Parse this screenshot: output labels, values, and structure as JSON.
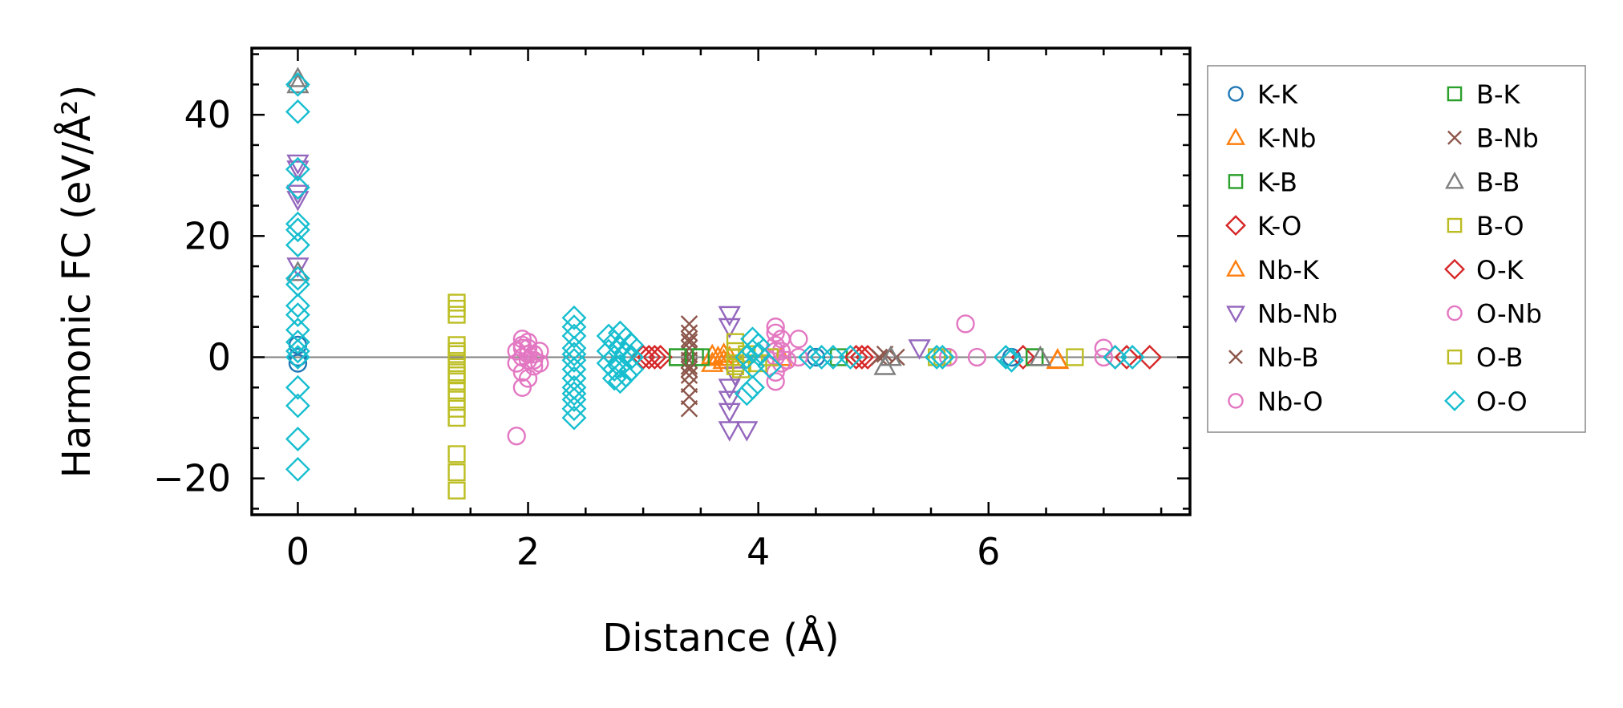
{
  "chart_data": {
    "type": "scatter",
    "title": "",
    "xlabel": "Distance (Å)",
    "ylabel": "Harmonic FC (eV/Å²)",
    "xlim": [
      -0.4,
      7.75
    ],
    "ylim": [
      -26,
      51
    ],
    "xticks": [
      0,
      2,
      4,
      6
    ],
    "yticks": [
      -20,
      0,
      20,
      40
    ],
    "grid": false,
    "zero_line": true,
    "legend_position": "outside-right",
    "legend_columns": 2,
    "series": [
      {
        "name": "K-K",
        "marker": "circle",
        "color": "#1f77b4",
        "points": [
          [
            0,
            0
          ],
          [
            0,
            2
          ],
          [
            0,
            -1
          ],
          [
            6.2,
            0
          ],
          [
            4.5,
            0
          ]
        ]
      },
      {
        "name": "K-Nb",
        "marker": "triangle-up",
        "color": "#ff7f0e",
        "points": [
          [
            3.6,
            -1
          ],
          [
            3.7,
            0.5
          ],
          [
            3.65,
            0
          ],
          [
            6.6,
            -0.5
          ],
          [
            4.2,
            0
          ]
        ]
      },
      {
        "name": "K-B",
        "marker": "square",
        "color": "#2ca02c",
        "points": [
          [
            3.3,
            0
          ],
          [
            3.45,
            0
          ],
          [
            6.4,
            0
          ],
          [
            4.7,
            0
          ]
        ]
      },
      {
        "name": "K-O",
        "marker": "diamond",
        "color": "#d62728",
        "points": [
          [
            3.0,
            0
          ],
          [
            3.15,
            0
          ],
          [
            4.85,
            0
          ],
          [
            4.95,
            0
          ],
          [
            6.3,
            0
          ],
          [
            7.2,
            0
          ],
          [
            7.4,
            0
          ]
        ]
      },
      {
        "name": "Nb-K",
        "marker": "triangle-up",
        "color": "#ff7f0e",
        "points": [
          [
            3.7,
            -0.5
          ],
          [
            3.75,
            0
          ],
          [
            3.6,
            0.3
          ],
          [
            6.6,
            -0.4
          ]
        ]
      },
      {
        "name": "Nb-Nb",
        "marker": "triangle-down",
        "color": "#9467bd",
        "points": [
          [
            0,
            32
          ],
          [
            0,
            31
          ],
          [
            0,
            27
          ],
          [
            0,
            26
          ],
          [
            0,
            15
          ],
          [
            3.75,
            7
          ],
          [
            3.75,
            5
          ],
          [
            3.75,
            -5
          ],
          [
            3.75,
            -7
          ],
          [
            3.75,
            -9
          ],
          [
            3.75,
            -12
          ],
          [
            3.9,
            -12
          ],
          [
            3.8,
            -3
          ],
          [
            5.4,
            1.5
          ]
        ]
      },
      {
        "name": "Nb-B",
        "marker": "x",
        "color": "#8c564b",
        "points": [
          [
            3.4,
            5.5
          ],
          [
            3.4,
            4
          ],
          [
            3.4,
            2.5
          ],
          [
            3.4,
            1.5
          ],
          [
            3.4,
            0.5
          ],
          [
            3.4,
            -0.5
          ],
          [
            3.4,
            -1.5
          ],
          [
            3.4,
            -3
          ],
          [
            3.4,
            -4.5
          ],
          [
            3.4,
            -6.5
          ],
          [
            3.4,
            -8.5
          ],
          [
            5.1,
            0.5
          ],
          [
            5.2,
            0
          ]
        ]
      },
      {
        "name": "Nb-O",
        "marker": "circle",
        "color": "#e377c2",
        "points": [
          [
            1.9,
            -13
          ],
          [
            1.95,
            3
          ],
          [
            2.0,
            2.5
          ],
          [
            1.95,
            2
          ],
          [
            2.0,
            1.5
          ],
          [
            1.9,
            1
          ],
          [
            2.05,
            0.5
          ],
          [
            1.95,
            0
          ],
          [
            2.0,
            -0.5
          ],
          [
            1.9,
            -1
          ],
          [
            2.05,
            -1.5
          ],
          [
            1.95,
            -2.5
          ],
          [
            2.0,
            -3.5
          ],
          [
            1.95,
            -5
          ],
          [
            2.1,
            1
          ],
          [
            2.1,
            -1
          ],
          [
            4.15,
            5
          ],
          [
            4.15,
            4
          ],
          [
            4.2,
            3
          ],
          [
            4.15,
            2
          ],
          [
            4.2,
            1
          ],
          [
            4.15,
            0
          ],
          [
            4.2,
            -1
          ],
          [
            4.15,
            -2.5
          ],
          [
            4.15,
            -4
          ],
          [
            4.35,
            3
          ],
          [
            4.35,
            0
          ],
          [
            5.8,
            5.5
          ],
          [
            7.0,
            1.5
          ],
          [
            7.0,
            0
          ]
        ]
      },
      {
        "name": "B-K",
        "marker": "square",
        "color": "#2ca02c",
        "points": [
          [
            3.3,
            0
          ],
          [
            3.5,
            0
          ],
          [
            6.4,
            0
          ]
        ]
      },
      {
        "name": "B-Nb",
        "marker": "x",
        "color": "#8c564b",
        "points": [
          [
            3.4,
            3
          ],
          [
            3.4,
            -2
          ],
          [
            5.05,
            0
          ]
        ]
      },
      {
        "name": "B-B",
        "marker": "triangle-up",
        "color": "#7f7f7f",
        "points": [
          [
            0,
            46
          ],
          [
            0,
            45
          ],
          [
            0,
            14
          ],
          [
            5.1,
            -1.5
          ],
          [
            5.15,
            0
          ],
          [
            6.45,
            0
          ]
        ]
      },
      {
        "name": "B-O",
        "marker": "square",
        "color": "#bcbd22",
        "points": [
          [
            1.38,
            9
          ],
          [
            1.38,
            8
          ],
          [
            1.38,
            7
          ],
          [
            1.38,
            2
          ],
          [
            1.38,
            0.5
          ],
          [
            1.38,
            -1
          ],
          [
            1.38,
            -2.5
          ],
          [
            1.38,
            -4
          ],
          [
            1.38,
            -5.5
          ],
          [
            1.38,
            -7
          ],
          [
            1.38,
            -8.5
          ],
          [
            1.38,
            -10
          ],
          [
            1.38,
            -16
          ],
          [
            1.38,
            -19
          ],
          [
            1.38,
            -22
          ],
          [
            3.8,
            2.5
          ],
          [
            3.8,
            1
          ],
          [
            3.8,
            0
          ],
          [
            3.8,
            -1.5
          ],
          [
            3.85,
            -2
          ],
          [
            3.9,
            0.5
          ],
          [
            4.0,
            -1
          ],
          [
            4.1,
            0
          ],
          [
            5.6,
            0
          ],
          [
            6.75,
            0
          ]
        ]
      },
      {
        "name": "O-K",
        "marker": "diamond",
        "color": "#d62728",
        "points": [
          [
            3.05,
            0
          ],
          [
            3.1,
            0
          ],
          [
            4.9,
            0
          ],
          [
            7.1,
            0
          ]
        ]
      },
      {
        "name": "O-Nb",
        "marker": "circle",
        "color": "#e377c2",
        "points": [
          [
            2.0,
            0.5
          ],
          [
            2.05,
            -0.5
          ],
          [
            1.95,
            1.5
          ],
          [
            4.15,
            1
          ],
          [
            4.25,
            -0.5
          ],
          [
            5.65,
            0
          ],
          [
            5.9,
            0
          ]
        ]
      },
      {
        "name": "O-B",
        "marker": "square",
        "color": "#bcbd22",
        "points": [
          [
            1.38,
            1
          ],
          [
            1.38,
            -3
          ],
          [
            3.8,
            -1
          ],
          [
            5.55,
            0
          ]
        ]
      },
      {
        "name": "O-O",
        "marker": "diamond",
        "color": "#17becf",
        "points": [
          [
            0,
            45
          ],
          [
            0,
            40.5
          ],
          [
            0,
            31
          ],
          [
            0,
            28
          ],
          [
            0,
            22
          ],
          [
            0,
            21
          ],
          [
            0,
            18.5
          ],
          [
            0,
            13
          ],
          [
            0,
            12
          ],
          [
            0,
            8.5
          ],
          [
            0,
            7
          ],
          [
            0,
            4.5
          ],
          [
            0,
            2.5
          ],
          [
            0,
            1
          ],
          [
            0,
            0
          ],
          [
            0,
            -5
          ],
          [
            0,
            -8
          ],
          [
            0,
            -13.5
          ],
          [
            0,
            -18.5
          ],
          [
            2.4,
            6.5
          ],
          [
            2.4,
            5
          ],
          [
            2.4,
            3.5
          ],
          [
            2.4,
            1.5
          ],
          [
            2.4,
            0.5
          ],
          [
            2.4,
            -0.5
          ],
          [
            2.4,
            -2
          ],
          [
            2.4,
            -3.5
          ],
          [
            2.4,
            -5
          ],
          [
            2.4,
            -6
          ],
          [
            2.4,
            -7
          ],
          [
            2.4,
            -8.5
          ],
          [
            2.4,
            -10
          ],
          [
            2.7,
            3.5
          ],
          [
            2.75,
            2.5
          ],
          [
            2.8,
            4
          ],
          [
            2.85,
            3
          ],
          [
            2.7,
            1
          ],
          [
            2.75,
            0
          ],
          [
            2.8,
            1.5
          ],
          [
            2.85,
            0.5
          ],
          [
            2.7,
            -1
          ],
          [
            2.75,
            -2
          ],
          [
            2.8,
            -1.5
          ],
          [
            2.85,
            -3
          ],
          [
            2.75,
            -3.5
          ],
          [
            2.9,
            0
          ],
          [
            2.9,
            2
          ],
          [
            2.9,
            -2
          ],
          [
            2.8,
            -4
          ],
          [
            3.95,
            3
          ],
          [
            3.95,
            1
          ],
          [
            3.9,
            0
          ],
          [
            3.95,
            -1.5
          ],
          [
            3.95,
            -5
          ],
          [
            3.9,
            -6
          ],
          [
            4.0,
            2
          ],
          [
            4.0,
            0.5
          ],
          [
            4.1,
            -1.5
          ],
          [
            4.45,
            0
          ],
          [
            4.55,
            0
          ],
          [
            4.65,
            0
          ],
          [
            4.8,
            0
          ],
          [
            5.55,
            0
          ],
          [
            5.6,
            0
          ],
          [
            6.15,
            0
          ],
          [
            6.2,
            -0.5
          ],
          [
            7.1,
            0
          ],
          [
            7.25,
            0
          ]
        ]
      }
    ]
  }
}
